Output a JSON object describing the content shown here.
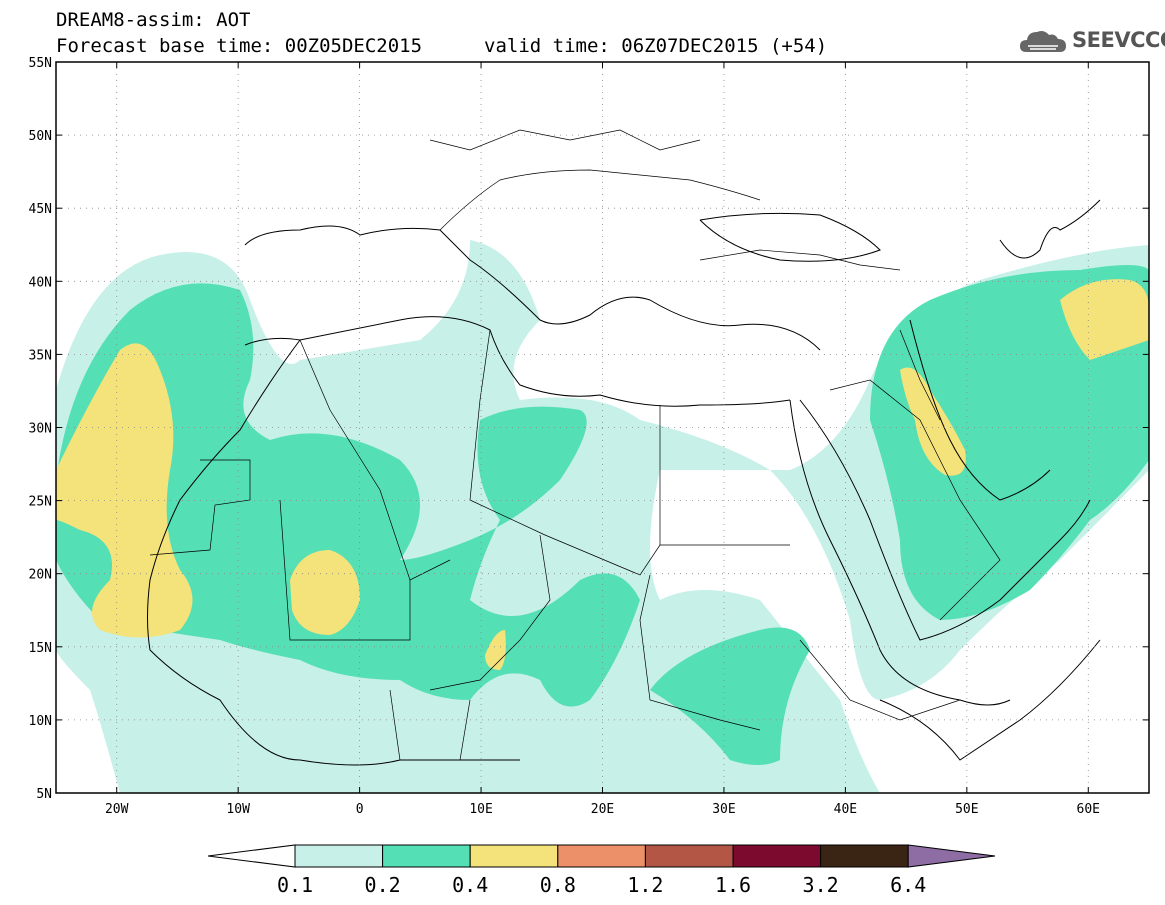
{
  "header": {
    "title": "DREAM8-assim: AOT",
    "base_time": "Forecast base time: 00Z05DEC2015",
    "valid_time": "valid time: 06Z07DEC2015 (+54)"
  },
  "logo": {
    "text": "SEEVCCC",
    "icon": "cloud-icon"
  },
  "map": {
    "lon_range": [
      -25,
      65
    ],
    "lat_range": [
      5,
      55
    ],
    "lat_ticks": [
      {
        "value": 55,
        "label": "55N"
      },
      {
        "value": 50,
        "label": "50N"
      },
      {
        "value": 45,
        "label": "45N"
      },
      {
        "value": 40,
        "label": "40N"
      },
      {
        "value": 35,
        "label": "35N"
      },
      {
        "value": 30,
        "label": "30N"
      },
      {
        "value": 25,
        "label": "25N"
      },
      {
        "value": 20,
        "label": "20N"
      },
      {
        "value": 15,
        "label": "15N"
      },
      {
        "value": 10,
        "label": "10N"
      },
      {
        "value": 5,
        "label": "5N"
      }
    ],
    "lon_ticks": [
      {
        "value": -20,
        "label": "20W"
      },
      {
        "value": -10,
        "label": "10W"
      },
      {
        "value": 0,
        "label": "0"
      },
      {
        "value": 10,
        "label": "10E"
      },
      {
        "value": 20,
        "label": "20E"
      },
      {
        "value": 30,
        "label": "30E"
      },
      {
        "value": 40,
        "label": "40E"
      },
      {
        "value": 50,
        "label": "50E"
      },
      {
        "value": 60,
        "label": "60E"
      }
    ],
    "gridlines": true
  },
  "colorbar": {
    "labels": [
      "0.1",
      "0.2",
      "0.4",
      "0.8",
      "1.2",
      "1.6",
      "3.2",
      "6.4"
    ],
    "colors": [
      "#ffffff",
      "#c6f0e8",
      "#55dfb5",
      "#f4e37a",
      "#eb9068",
      "#b35646",
      "#7b0a2e",
      "#3a2515",
      "#8e6da4"
    ]
  }
}
